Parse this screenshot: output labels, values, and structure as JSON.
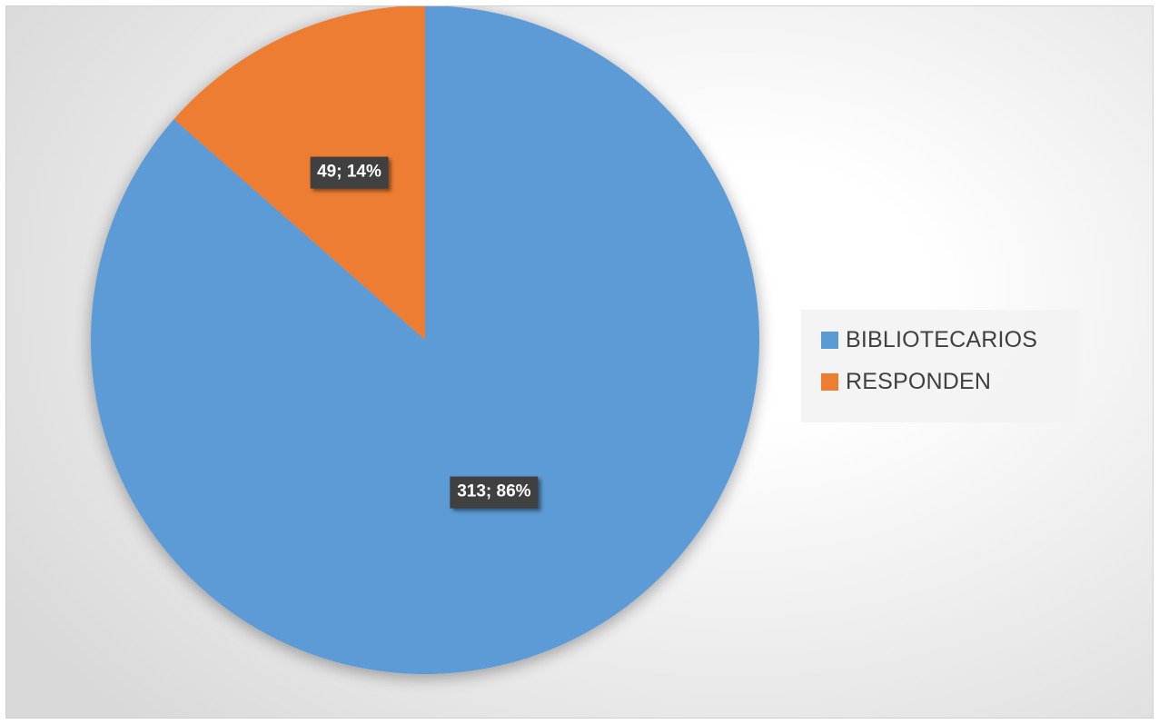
{
  "chart_data": {
    "type": "pie",
    "title": "",
    "series": [
      {
        "slices": [
          {
            "name": "BIBLIOTECARIOS",
            "value": 313,
            "percent": 86,
            "label": "313; 86%",
            "color": "#5B9BD5"
          },
          {
            "name": "RESPONDEN",
            "value": 49,
            "percent": 14,
            "label": "49; 14%",
            "color": "#ED7D31"
          }
        ]
      }
    ],
    "legend": {
      "position": "right",
      "entries": [
        "BIBLIOTECARIOS",
        "RESPONDEN"
      ]
    }
  }
}
